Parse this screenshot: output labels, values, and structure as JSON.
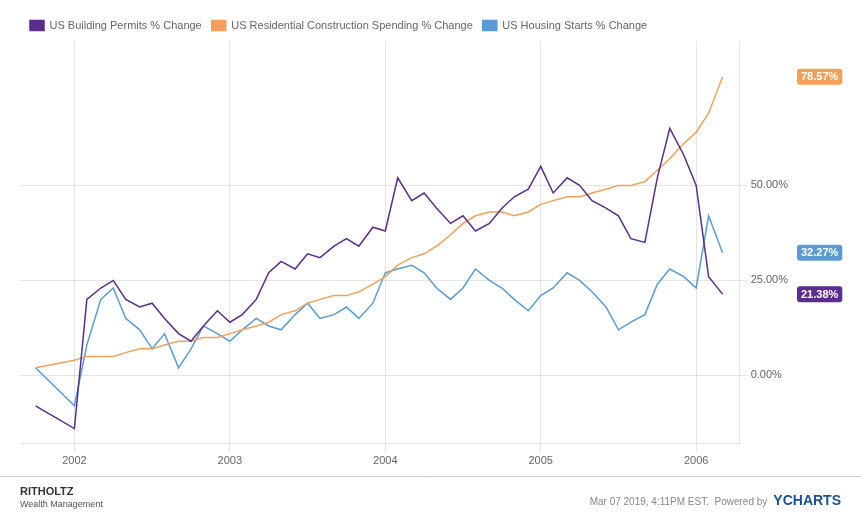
{
  "chart_data": {
    "type": "line",
    "x": [
      2001.75,
      2002.0,
      2002.08,
      2002.17,
      2002.25,
      2002.33,
      2002.42,
      2002.5,
      2002.58,
      2002.67,
      2002.75,
      2002.83,
      2002.92,
      2003.0,
      2003.08,
      2003.17,
      2003.25,
      2003.33,
      2003.42,
      2003.5,
      2003.58,
      2003.67,
      2003.75,
      2003.83,
      2003.92,
      2004.0,
      2004.08,
      2004.17,
      2004.25,
      2004.33,
      2004.42,
      2004.5,
      2004.58,
      2004.67,
      2004.75,
      2004.83,
      2004.92,
      2005.0,
      2005.08,
      2005.17,
      2005.25,
      2005.33,
      2005.42,
      2005.5,
      2005.58,
      2005.67,
      2005.75,
      2005.83,
      2005.92,
      2006.0,
      2006.08,
      2006.17
    ],
    "series": [
      {
        "name": "US Building Permits % Change",
        "color": "#5b2d8e",
        "values": [
          -8,
          -14,
          20,
          23,
          25,
          20,
          18,
          19,
          15,
          11,
          9,
          13,
          17,
          14,
          16,
          20,
          27,
          30,
          28,
          32,
          31,
          34,
          36,
          34,
          39,
          38,
          52,
          46,
          48,
          44,
          40,
          42,
          38,
          40,
          44,
          47,
          49,
          55,
          48,
          52,
          50,
          46,
          44,
          42,
          36,
          35,
          52,
          65,
          58,
          50,
          26,
          21.38
        ]
      },
      {
        "name": "US Residential Construction Spending % Change",
        "color": "#f5a05a",
        "values": [
          2,
          4,
          5,
          5,
          5,
          6,
          7,
          7,
          8,
          9,
          9,
          10,
          10,
          11,
          12,
          13,
          14,
          16,
          17,
          19,
          20,
          21,
          21,
          22,
          24,
          26,
          29,
          31,
          32,
          34,
          37,
          40,
          42,
          43,
          43,
          42,
          43,
          45,
          46,
          47,
          47,
          48,
          49,
          50,
          50,
          51,
          54,
          57,
          61,
          64,
          69,
          78.57
        ]
      },
      {
        "name": "US Housing Starts % Change",
        "color": "#5b9bd5",
        "values": [
          2,
          -8,
          8,
          20,
          23,
          15,
          12,
          7,
          11,
          2,
          7,
          13,
          11,
          9,
          12,
          15,
          13,
          12,
          16,
          19,
          15,
          16,
          18,
          15,
          19,
          27,
          28,
          29,
          27,
          23,
          20,
          23,
          28,
          25,
          23,
          20,
          17,
          21,
          23,
          27,
          25,
          22,
          18,
          12,
          14,
          16,
          24,
          28,
          26,
          23,
          42,
          32.27
        ]
      }
    ],
    "xlim": [
      2001.65,
      2006.28
    ],
    "xticks": [
      2002,
      2003,
      2004,
      2005,
      2006
    ],
    "ylim": [
      -18,
      88
    ],
    "yticks": [
      {
        "value": 0,
        "label": "0.00%"
      },
      {
        "value": 25,
        "label": "25.00%"
      },
      {
        "value": 50,
        "label": "50.00%"
      }
    ],
    "grid": true,
    "legend": "upper left",
    "annotations": [
      {
        "label": "78.57%",
        "y": 78.57,
        "color": "#f5a05a"
      },
      {
        "label": "32.27%",
        "y": 32.27,
        "color": "#5b9bd5"
      },
      {
        "label": "21.38%",
        "y": 21.38,
        "color": "#5b2d8e"
      }
    ],
    "footer": {
      "left": [
        "RITHOLTZ",
        "Wealth Management"
      ],
      "right": [
        "Mar 07 2019, 4:11PM EST.  Powered by",
        "YCHARTS"
      ]
    }
  }
}
